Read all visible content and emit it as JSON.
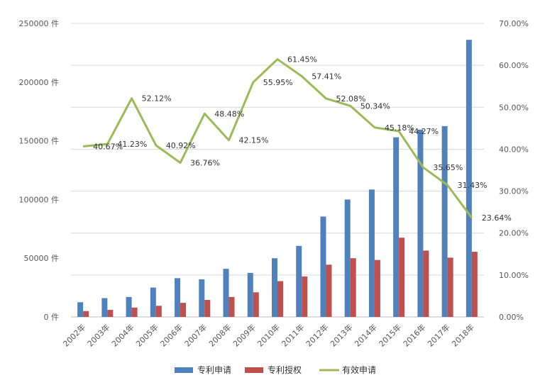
{
  "chart_data": {
    "type": "bar",
    "categories": [
      "2002年",
      "2003年",
      "2004年",
      "2005年",
      "2006年",
      "2007年",
      "2008年",
      "2009年",
      "2010年",
      "2011年",
      "2012年",
      "2013年",
      "2014年",
      "2015年",
      "2016年",
      "2017年",
      "2018年"
    ],
    "series": [
      {
        "name": "专利申请",
        "type": "bar",
        "axis": "left",
        "color": "#4F81BD",
        "values": [
          12500,
          16000,
          17000,
          25000,
          33000,
          32000,
          41000,
          37500,
          50000,
          60500,
          85500,
          100000,
          108500,
          153000,
          159500,
          162500,
          236000
        ]
      },
      {
        "name": "专利授权",
        "type": "bar",
        "axis": "left",
        "color": "#C0504D",
        "values": [
          5000,
          6000,
          8000,
          9500,
          12000,
          14500,
          17000,
          21000,
          30500,
          34500,
          44500,
          50000,
          48500,
          67500,
          56500,
          50500,
          55500
        ]
      },
      {
        "name": "有效申请",
        "type": "line",
        "axis": "right",
        "color": "#9BBB59",
        "values": [
          40.67,
          41.23,
          52.12,
          40.92,
          36.76,
          48.48,
          42.15,
          55.95,
          61.45,
          57.41,
          52.08,
          50.34,
          45.18,
          44.27,
          35.65,
          31.43,
          23.64
        ],
        "labels": [
          "40.67%",
          "41.23%",
          "52.12%",
          "40.92%",
          "36.76%",
          "48.48%",
          "42.15%",
          "55.95%",
          "61.45%",
          "57.41%",
          "52.08%",
          "50.34%",
          "45.18%",
          "44.27%",
          "35.65%",
          "31.43%",
          "23.64%"
        ]
      }
    ],
    "left_axis": {
      "ylim": [
        0,
        250000
      ],
      "ticks": [
        "0 件",
        "50000 件",
        "100000 件",
        "150000 件",
        "200000 件",
        "250000 件"
      ]
    },
    "right_axis": {
      "ylim": [
        0,
        70
      ],
      "ticks": [
        "0.00%",
        "10.00%",
        "20.00%",
        "30.00%",
        "40.00%",
        "50.00%",
        "60.00%",
        "70.00%"
      ]
    },
    "legend": [
      "专利申请",
      "专利授权",
      "有效申请"
    ],
    "legend_position": "bottom",
    "grid": true
  }
}
